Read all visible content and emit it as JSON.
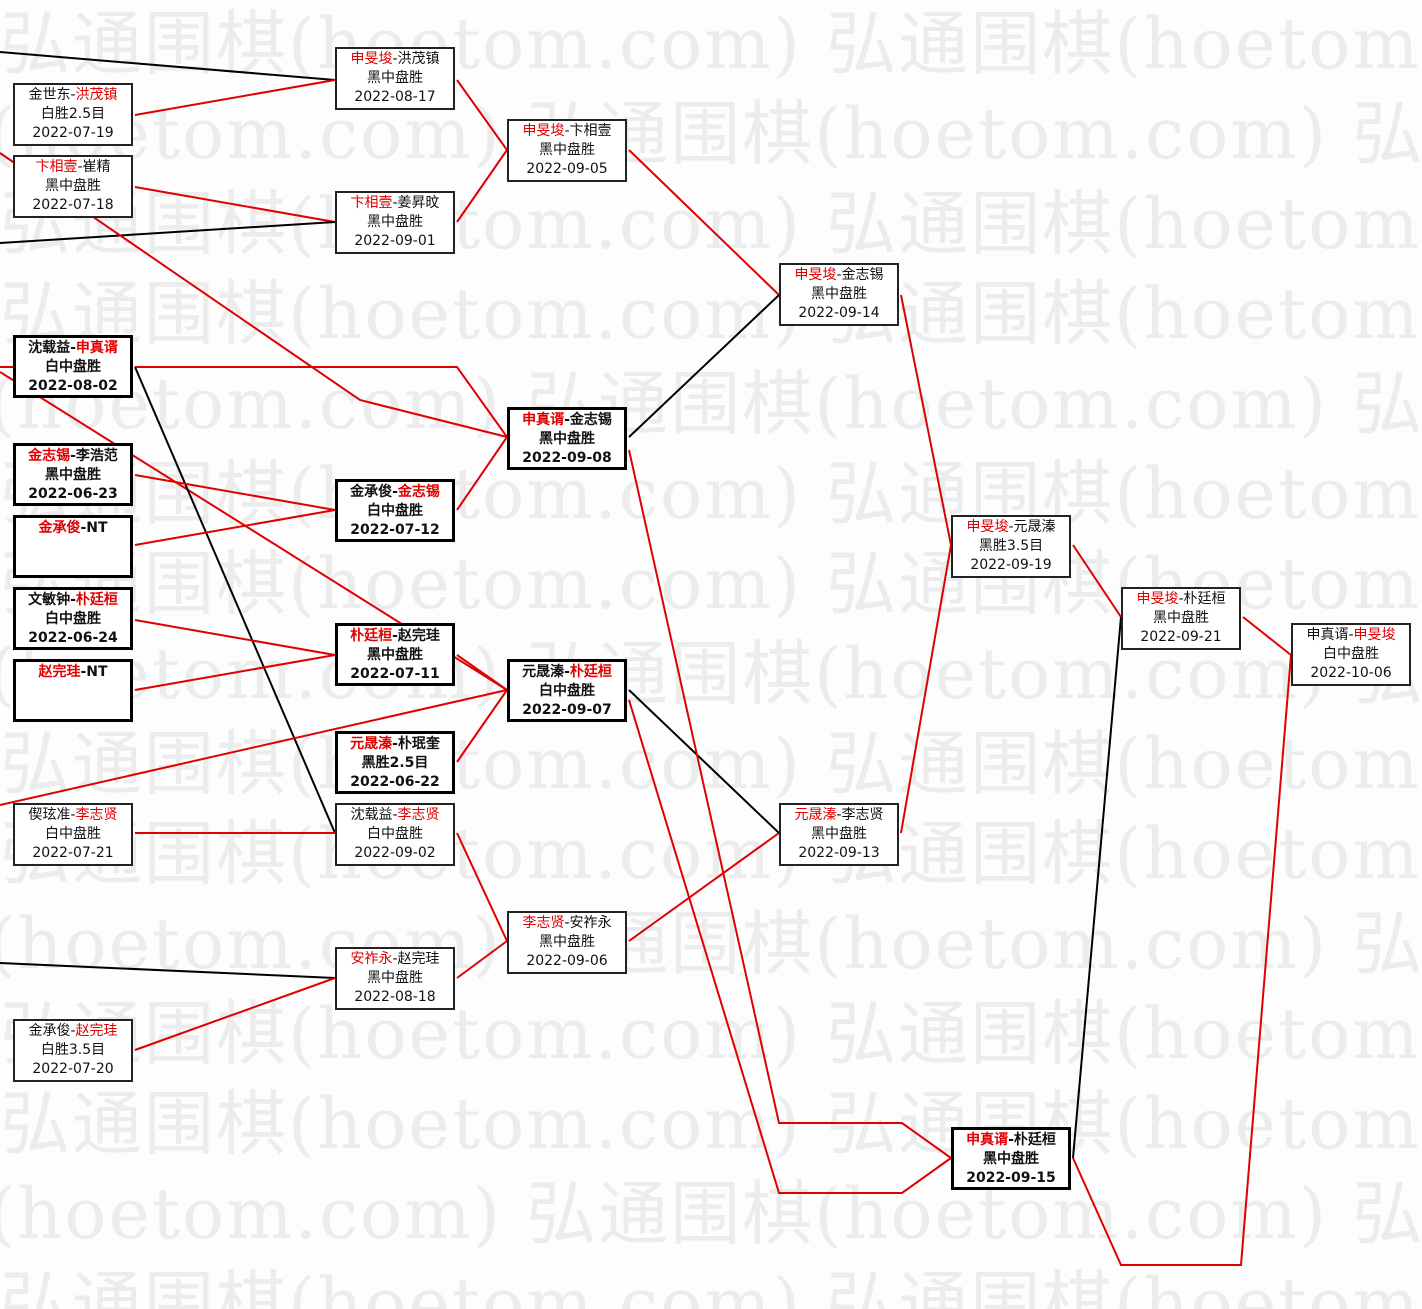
{
  "watermark": "弘通围棋(hoetom.com) 弘通围棋(hoetom.com) 弘通围棋(hoetom.com)",
  "colors": {
    "winner": "#e00000",
    "line_win": "#e00000",
    "line_loss": "#000000"
  },
  "matches": [
    {
      "p1": "金世东",
      "p2": "洪茂镇",
      "winner": 2,
      "result": "白胜2.5目",
      "date": "2022-07-19",
      "bold": false
    },
    {
      "p1": "卞相壹",
      "p2": "崔精",
      "winner": 1,
      "result": "黑中盘胜",
      "date": "2022-07-18",
      "bold": false
    },
    {
      "p1": "沈载益",
      "p2": "申真谞",
      "winner": 2,
      "result": "白中盘胜",
      "date": "2022-08-02",
      "bold": true
    },
    {
      "p1": "金志锡",
      "p2": "李浩范",
      "winner": 1,
      "result": "黑中盘胜",
      "date": "2022-06-23",
      "bold": true
    },
    {
      "p1": "金承俊",
      "p2": "NT",
      "winner": 1,
      "result": "",
      "date": "",
      "bold": true
    },
    {
      "p1": "文敏钟",
      "p2": "朴廷桓",
      "winner": 2,
      "result": "白中盘胜",
      "date": "2022-06-24",
      "bold": true
    },
    {
      "p1": "赵完珪",
      "p2": "NT",
      "winner": 1,
      "result": "",
      "date": "",
      "bold": true
    },
    {
      "p1": "偰玹准",
      "p2": "李志贤",
      "winner": 2,
      "result": "白中盘胜",
      "date": "2022-07-21",
      "bold": false
    },
    {
      "p1": "金承俊",
      "p2": "赵完珪",
      "winner": 2,
      "result": "白胜3.5目",
      "date": "2022-07-20",
      "bold": false
    },
    {
      "p1": "申旻埈",
      "p2": "洪茂镇",
      "winner": 1,
      "result": "黑中盘胜",
      "date": "2022-08-17",
      "bold": false
    },
    {
      "p1": "卞相壹",
      "p2": "姜昇旼",
      "winner": 1,
      "result": "黑中盘胜",
      "date": "2022-09-01",
      "bold": false
    },
    {
      "p1": "金承俊",
      "p2": "金志锡",
      "winner": 2,
      "result": "白中盘胜",
      "date": "2022-07-12",
      "bold": true
    },
    {
      "p1": "朴廷桓",
      "p2": "赵完珪",
      "winner": 1,
      "result": "黑中盘胜",
      "date": "2022-07-11",
      "bold": true
    },
    {
      "p1": "元晟溱",
      "p2": "朴珉奎",
      "winner": 1,
      "result": "黑胜2.5目",
      "date": "2022-06-22",
      "bold": true
    },
    {
      "p1": "沈载益",
      "p2": "李志贤",
      "winner": 2,
      "result": "白中盘胜",
      "date": "2022-09-02",
      "bold": false
    },
    {
      "p1": "安祚永",
      "p2": "赵完珪",
      "winner": 1,
      "result": "黑中盘胜",
      "date": "2022-08-18",
      "bold": false
    },
    {
      "p1": "申旻埈",
      "p2": "卞相壹",
      "winner": 1,
      "result": "黑中盘胜",
      "date": "2022-09-05",
      "bold": false
    },
    {
      "p1": "申真谞",
      "p2": "金志锡",
      "winner": 1,
      "result": "黑中盘胜",
      "date": "2022-09-08",
      "bold": true
    },
    {
      "p1": "元晟溱",
      "p2": "朴廷桓",
      "winner": 2,
      "result": "白中盘胜",
      "date": "2022-09-07",
      "bold": true
    },
    {
      "p1": "李志贤",
      "p2": "安祚永",
      "winner": 1,
      "result": "黑中盘胜",
      "date": "2022-09-06",
      "bold": false
    },
    {
      "p1": "申旻埈",
      "p2": "金志锡",
      "winner": 1,
      "result": "黑中盘胜",
      "date": "2022-09-14",
      "bold": false
    },
    {
      "p1": "元晟溱",
      "p2": "李志贤",
      "winner": 1,
      "result": "黑中盘胜",
      "date": "2022-09-13",
      "bold": false
    },
    {
      "p1": "申旻埈",
      "p2": "元晟溱",
      "winner": 1,
      "result": "黑胜3.5目",
      "date": "2022-09-19",
      "bold": false
    },
    {
      "p1": "申真谞",
      "p2": "朴廷桓",
      "winner": 1,
      "result": "黑中盘胜",
      "date": "2022-09-15",
      "bold": true
    },
    {
      "p1": "申旻埈",
      "p2": "朴廷桓",
      "winner": 1,
      "result": "黑中盘胜",
      "date": "2022-09-21",
      "bold": false
    },
    {
      "p1": "申真谞",
      "p2": "申旻埈",
      "winner": 2,
      "result": "白中盘胜",
      "date": "2022-10-06",
      "bold": false
    }
  ]
}
